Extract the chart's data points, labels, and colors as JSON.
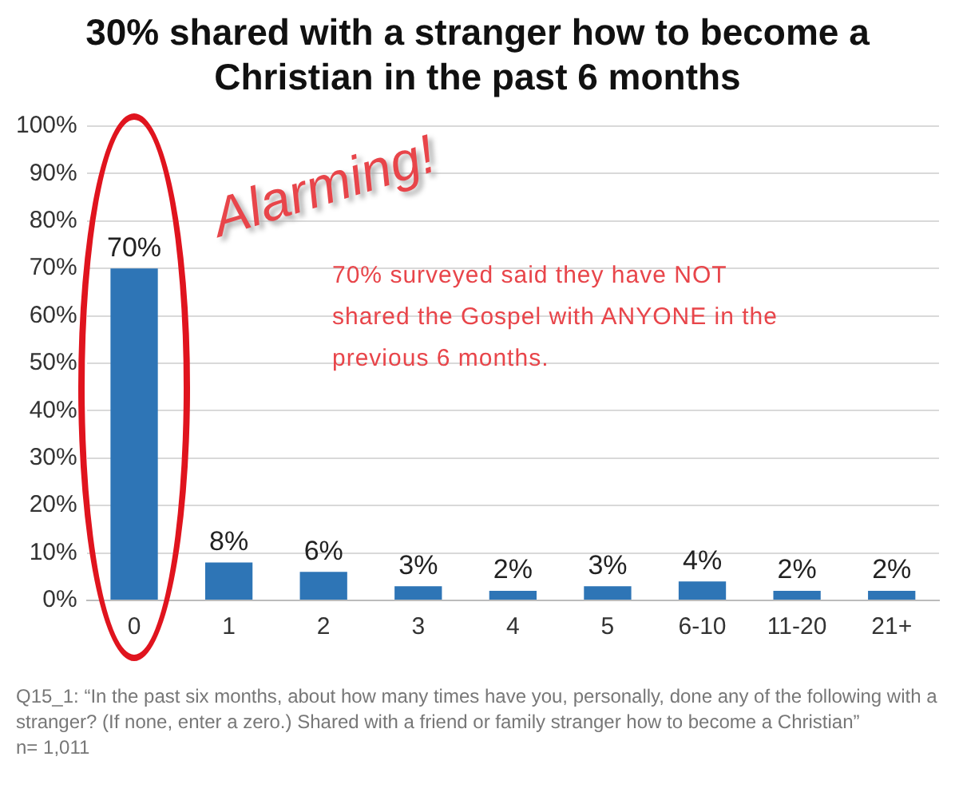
{
  "chart_data": {
    "type": "bar",
    "title": "30% shared with a stranger how to become a Christian in the past 6 months",
    "categories": [
      "0",
      "1",
      "2",
      "3",
      "4",
      "5",
      "6-10",
      "11-20",
      "21+"
    ],
    "values": [
      70,
      8,
      6,
      3,
      2,
      3,
      4,
      2,
      2
    ],
    "value_labels": [
      "70%",
      "8%",
      "6%",
      "3%",
      "2%",
      "3%",
      "4%",
      "2%",
      "2%"
    ],
    "color": "#2e75b6",
    "ylim": [
      0,
      100
    ],
    "yticks": [
      {
        "value": 0,
        "label": "0%"
      },
      {
        "value": 10,
        "label": "10%"
      },
      {
        "value": 20,
        "label": "20%"
      },
      {
        "value": 30,
        "label": "30%"
      },
      {
        "value": 40,
        "label": "40%"
      },
      {
        "value": 50,
        "label": "50%"
      },
      {
        "value": 60,
        "label": "60%"
      },
      {
        "value": 70,
        "label": "70%"
      },
      {
        "value": 80,
        "label": "80%"
      },
      {
        "value": 90,
        "label": "90%"
      },
      {
        "value": 100,
        "label": "100%"
      }
    ],
    "grid": "y",
    "annotations": [
      "Alarming!",
      "70% surveyed said they have NOT shared the Gospel with ANYONE in the previous 6 months.",
      "Q15_1: “In the past six months, about how many times have you, personally, done any of the following with a stranger? (If none, enter a zero.) Shared with a friend or family stranger how to become a Christian”",
      "n= 1,011"
    ]
  }
}
